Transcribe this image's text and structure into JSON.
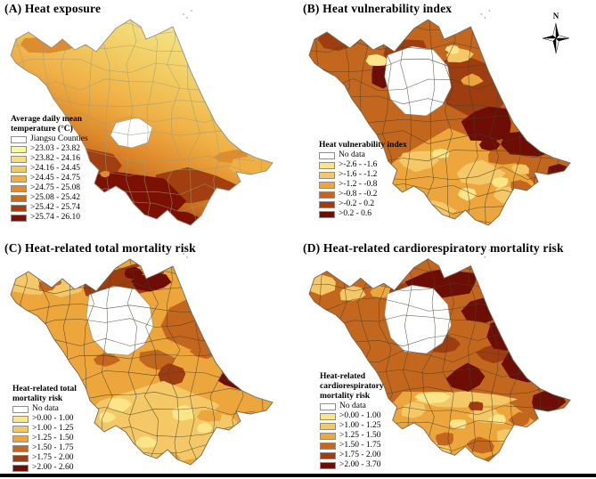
{
  "figure": {
    "background": "#ffffff",
    "bottom_rule_color": "#000000"
  },
  "north_arrow_label": "N",
  "panels": [
    {
      "id": "A",
      "title": "(A) Heat exposure",
      "map_style": "continuous-raster-gradient",
      "legend": {
        "title_lines": [
          "Average daily mean",
          "temperature (°C)"
        ],
        "items": [
          {
            "label": "Jiangsu Counties",
            "color": "#FFFFFF"
          },
          {
            "label": ">23.03 - 23.82",
            "color": "#FBF896"
          },
          {
            "label": ">23.82 - 24.16",
            "color": "#F4DF7E"
          },
          {
            "label": ">24.16 - 24.45",
            "color": "#F2CB60"
          },
          {
            "label": ">24.45 - 24.75",
            "color": "#EFAF45"
          },
          {
            "label": ">24.75 - 25.08",
            "color": "#E18C2B"
          },
          {
            "label": ">25.08 - 25.42",
            "color": "#C66A1C"
          },
          {
            "label": ">25.42 - 25.74",
            "color": "#A23F10"
          },
          {
            "label": ">25.74 - 26.10",
            "color": "#7B1105"
          }
        ]
      }
    },
    {
      "id": "B",
      "title": "(B) Heat vulnerability index",
      "map_style": "county-choropleth",
      "has_north_arrow": true,
      "legend": {
        "title_lines": [
          "Heat vulnerability index"
        ],
        "items": [
          {
            "label": "No data",
            "color": "#FFFFFF"
          },
          {
            "label": ">-2.6 - -1.6",
            "color": "#FAE588"
          },
          {
            "label": ">-1.6 - -1.2",
            "color": "#F4C767"
          },
          {
            "label": ">-1.2 - -0.8",
            "color": "#ECA63C"
          },
          {
            "label": ">-0.8 - -0.2",
            "color": "#C3671E"
          },
          {
            "label": ">-0.2 - 0.2",
            "color": "#9E3E10"
          },
          {
            "label": ">0.2 - 0.6",
            "color": "#6E0D04"
          }
        ]
      }
    },
    {
      "id": "C",
      "title": "(C) Heat-related total mortality risk",
      "map_style": "county-choropleth",
      "legend": {
        "title_lines": [
          "Heat-related total",
          "mortality risk"
        ],
        "items": [
          {
            "label": "No data",
            "color": "#FFFFFF"
          },
          {
            "label": ">0.00 - 1.00",
            "color": "#FAE588"
          },
          {
            "label": ">1.00 - 1.25",
            "color": "#F4C767"
          },
          {
            "label": ">1.25 - 1.50",
            "color": "#ECA63C"
          },
          {
            "label": ">1.50 - 1.75",
            "color": "#C3671E"
          },
          {
            "label": ">1.75 - 2.00",
            "color": "#9E3E10"
          },
          {
            "label": ">2.00 - 2.60",
            "color": "#6E0D04"
          }
        ]
      }
    },
    {
      "id": "D",
      "title": "(D) Heat-related cardiorespiratory mortality risk",
      "map_style": "county-choropleth",
      "legend": {
        "title_lines": [
          "Heat-related",
          "cardiorespiratory",
          "mortality risk"
        ],
        "items": [
          {
            "label": "No data",
            "color": "#FFFFFF"
          },
          {
            "label": ">0.00 - 1.00",
            "color": "#FAE588"
          },
          {
            "label": ">1.00 - 1.25",
            "color": "#F4C767"
          },
          {
            "label": ">1.25 - 1.50",
            "color": "#ECA63C"
          },
          {
            "label": ">1.50 - 1.75",
            "color": "#C3671E"
          },
          {
            "label": ">1.75 - 2.00",
            "color": "#9E3E10"
          },
          {
            "label": ">2.00 - 3.70",
            "color": "#6E0D04"
          }
        ]
      }
    }
  ]
}
